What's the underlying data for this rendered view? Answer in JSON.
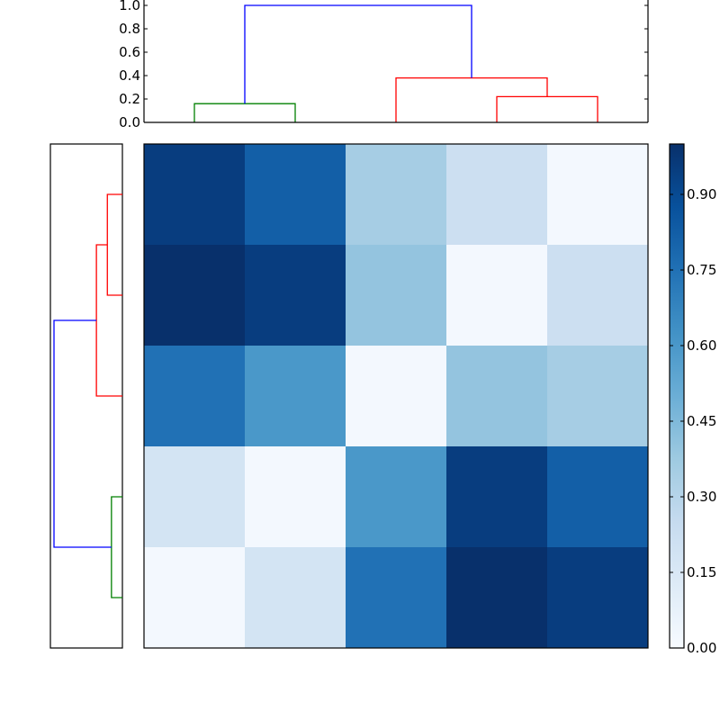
{
  "chart_data": [
    {
      "type": "dendrogram",
      "orientation": "top",
      "ylim": [
        0,
        1.0
      ],
      "yticks": [
        "0.0",
        "0.2",
        "0.4",
        "0.6",
        "0.8",
        "1.0"
      ],
      "ytick_values": [
        0.0,
        0.2,
        0.4,
        0.6,
        0.8,
        1.0
      ],
      "leaf_count": 5,
      "links": [
        {
          "x1": 0.5,
          "x2": 1.5,
          "h1": 0.0,
          "h2": 0.0,
          "h": 0.16,
          "color": "#008000"
        },
        {
          "x1": 3.5,
          "x2": 4.5,
          "h1": 0.0,
          "h2": 0.0,
          "h": 0.22,
          "color": "#ff0000"
        },
        {
          "x1": 2.5,
          "x2": 4.0,
          "h1": 0.0,
          "h2": 0.22,
          "h": 0.38,
          "color": "#ff0000"
        },
        {
          "x1": 1.0,
          "x2": 3.25,
          "h1": 0.16,
          "h2": 0.38,
          "h": 1.0,
          "color": "#0000ff"
        }
      ]
    },
    {
      "type": "dendrogram",
      "orientation": "left",
      "leaf_count": 5,
      "links": [
        {
          "y1": 3.5,
          "y2": 4.5,
          "h1": 0.0,
          "h2": 0.0,
          "h": 0.16,
          "color": "#008000"
        },
        {
          "y1": 0.5,
          "y2": 1.5,
          "h1": 0.0,
          "h2": 0.0,
          "h": 0.22,
          "color": "#ff0000"
        },
        {
          "y1": 1.0,
          "y2": 2.5,
          "h1": 0.22,
          "h2": 0.0,
          "h": 0.38,
          "color": "#ff0000"
        },
        {
          "y1": 1.75,
          "y2": 4.0,
          "h1": 0.38,
          "h2": 0.16,
          "h": 1.0,
          "color": "#0000ff"
        }
      ]
    },
    {
      "type": "heatmap",
      "colormap": "Blues",
      "vmin": 0.0,
      "vmax": 1.0,
      "values": [
        [
          0.95,
          0.82,
          0.35,
          0.22,
          0.02
        ],
        [
          1.0,
          0.95,
          0.4,
          0.02,
          0.22
        ],
        [
          0.75,
          0.6,
          0.02,
          0.4,
          0.35
        ],
        [
          0.18,
          0.02,
          0.6,
          0.95,
          0.82
        ],
        [
          0.02,
          0.18,
          0.75,
          1.0,
          0.95
        ]
      ]
    },
    {
      "type": "colorbar",
      "colormap": "Blues",
      "ticks": [
        "0.00",
        "0.15",
        "0.30",
        "0.45",
        "0.60",
        "0.75",
        "0.90"
      ],
      "tick_values": [
        0.0,
        0.15,
        0.3,
        0.45,
        0.6,
        0.75,
        0.9
      ],
      "vmin": 0.0,
      "vmax": 1.0
    }
  ]
}
